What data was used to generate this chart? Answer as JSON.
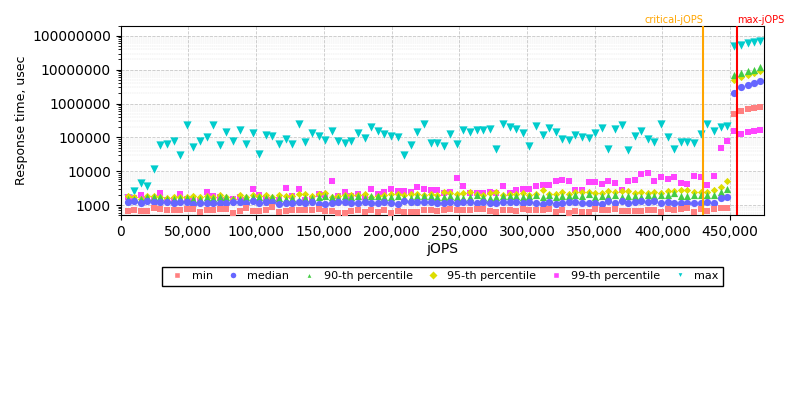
{
  "xlabel": "jOPS",
  "ylabel": "Response time, usec",
  "xmax": 475000,
  "xlim_left": 0,
  "ymin": 500,
  "ymax": 200000000,
  "critical_jops": 430000,
  "max_jops": 455000,
  "critical_label": "critical-jOPS",
  "max_label": "max-jOPS",
  "critical_color": "#FFA500",
  "max_color": "#FF0000",
  "series": {
    "min": {
      "color": "#FF8080",
      "marker": "s",
      "ms": 2.5,
      "label": "min"
    },
    "median": {
      "color": "#6666FF",
      "marker": "o",
      "ms": 3.5,
      "label": "median"
    },
    "p90": {
      "color": "#44CC44",
      "marker": "^",
      "ms": 3.5,
      "label": "90-th percentile"
    },
    "p95": {
      "color": "#DDDD00",
      "marker": "D",
      "ms": 2.5,
      "label": "95-th percentile"
    },
    "p99": {
      "color": "#FF44FF",
      "marker": "s",
      "ms": 3.0,
      "label": "99-th percentile"
    },
    "max": {
      "color": "#00CCCC",
      "marker": "v",
      "ms": 4.0,
      "label": "max"
    }
  },
  "background_color": "#FFFFFF",
  "grid_color": "#BBBBBB",
  "xticks": [
    0,
    50000,
    100000,
    150000,
    200000,
    250000,
    300000,
    350000,
    400000,
    450000
  ]
}
